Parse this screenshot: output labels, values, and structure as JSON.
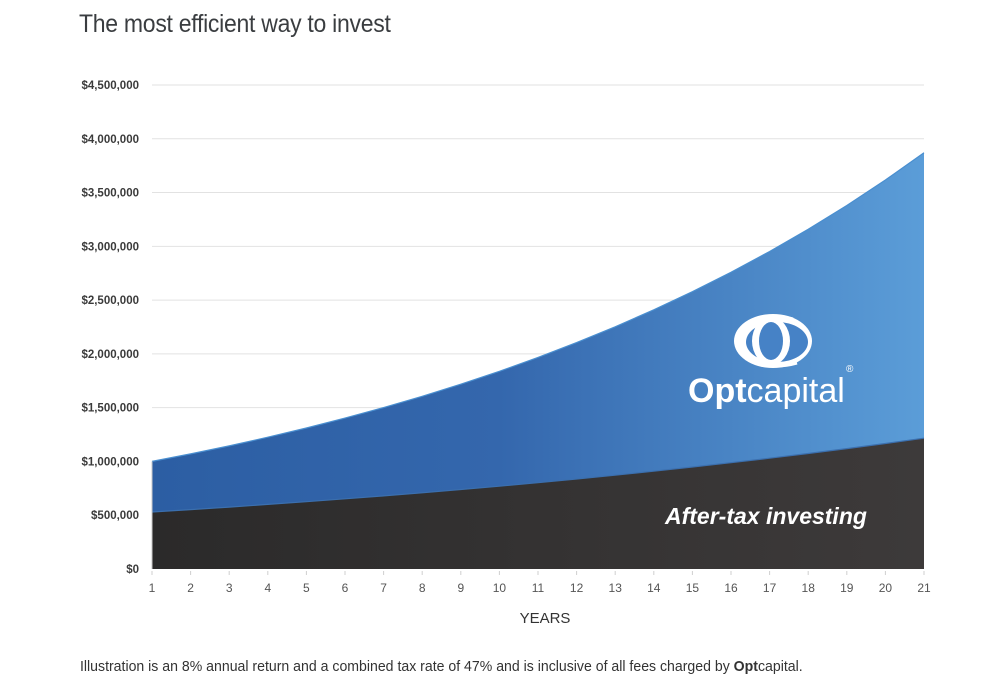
{
  "title": "The most efficient way to invest",
  "footnote": {
    "text": "Illustration is an 8% annual return and a combined tax rate of 47% and is inclusive of all fees charged by ",
    "brand_bold": "Opt",
    "brand_regular": "capital."
  },
  "logo": {
    "bold": "Opt",
    "regular": "capital",
    "mark": "®"
  },
  "colors": {
    "blue_dark": "#2c5ea3",
    "blue_light": "#5a9dd8",
    "charcoal": "#2e2c2c",
    "charcoal_light": "#3d3a3a",
    "grid": "#e2e2e2",
    "title": "#3a3d40"
  },
  "chart_data": {
    "type": "area",
    "title": "The most efficient way to invest",
    "xlabel": "YEARS",
    "ylabel": "",
    "x": [
      1,
      2,
      3,
      4,
      5,
      6,
      7,
      8,
      9,
      10,
      11,
      12,
      13,
      14,
      15,
      16,
      17,
      18,
      19,
      20,
      21
    ],
    "ylim": [
      0,
      4500000
    ],
    "yticks": [
      0,
      500000,
      1000000,
      1500000,
      2000000,
      2500000,
      3000000,
      3500000,
      4000000,
      4500000
    ],
    "ytick_labels": [
      "$0",
      "$500,000",
      "$1,000,000",
      "$1,500,000",
      "$2,000,000",
      "$2,500,000",
      "$3,000,000",
      "$3,500,000",
      "$4,000,000",
      "$4,500,000"
    ],
    "grid": true,
    "series": [
      {
        "name": "Optcapital",
        "label_style": "logo",
        "values": [
          1000000,
          1070000,
          1144900,
          1225043,
          1310796,
          1402552,
          1500730,
          1605781,
          1718186,
          1838459,
          1967151,
          2104852,
          2252192,
          2409845,
          2578534,
          2759032,
          2952164,
          3158815,
          3379932,
          3616528,
          3869684
        ]
      },
      {
        "name": "After-tax investing",
        "label_style": "text",
        "values": [
          530000,
          552472,
          575897,
          600315,
          625768,
          652300,
          679958,
          708788,
          738840,
          770167,
          802822,
          836862,
          872345,
          909332,
          947887,
          988078,
          1029973,
          1073645,
          1119168,
          1166621,
          1216086
        ]
      }
    ]
  }
}
